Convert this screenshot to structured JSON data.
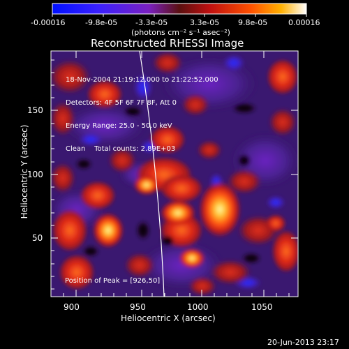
{
  "colorbar": {
    "ticks": [
      "-0.00016",
      "-9.8e-05",
      "-3.3e-05",
      "3.3e-05",
      "9.8e-05",
      "0.00016"
    ],
    "units_label": "(photons cm⁻² s⁻¹ asec⁻²)",
    "colors": [
      "#0010ff",
      "#4020ff",
      "#8020c0",
      "#a02020",
      "#ff3000",
      "#ff9000",
      "#ffff70",
      "#ffffff"
    ]
  },
  "plot": {
    "title": "Reconstructed RHESSI Image",
    "xlabel": "Heliocentric X (arcsec)",
    "ylabel": "Heliocentric Y (arcsec)",
    "x_ticks": [
      "900",
      "950",
      "1000",
      "1050"
    ],
    "y_ticks": [
      "50",
      "100",
      "150"
    ],
    "info_lines": [
      "18-Nov-2004 21:19:12.000 to 21:22:52.000",
      "Detectors: 4F 5F 6F 7F 8F, Att 0",
      "Energy Range: 25.0 - 50.0 keV",
      "Clean    Total counts: 2.89E+03"
    ],
    "peak_label": "Position of Peak = [926,50]"
  },
  "footer": {
    "timestamp": "20-Jun-2013 23:17"
  },
  "chart_data": {
    "type": "heatmap",
    "title": "Reconstructed RHESSI Image",
    "xlabel": "Heliocentric X (arcsec)",
    "ylabel": "Heliocentric Y (arcsec)",
    "xlim": [
      883,
      1073
    ],
    "ylim": [
      13,
      196
    ],
    "value_range": [
      -0.00016,
      0.00016
    ],
    "peak": [
      926,
      50
    ]
  }
}
